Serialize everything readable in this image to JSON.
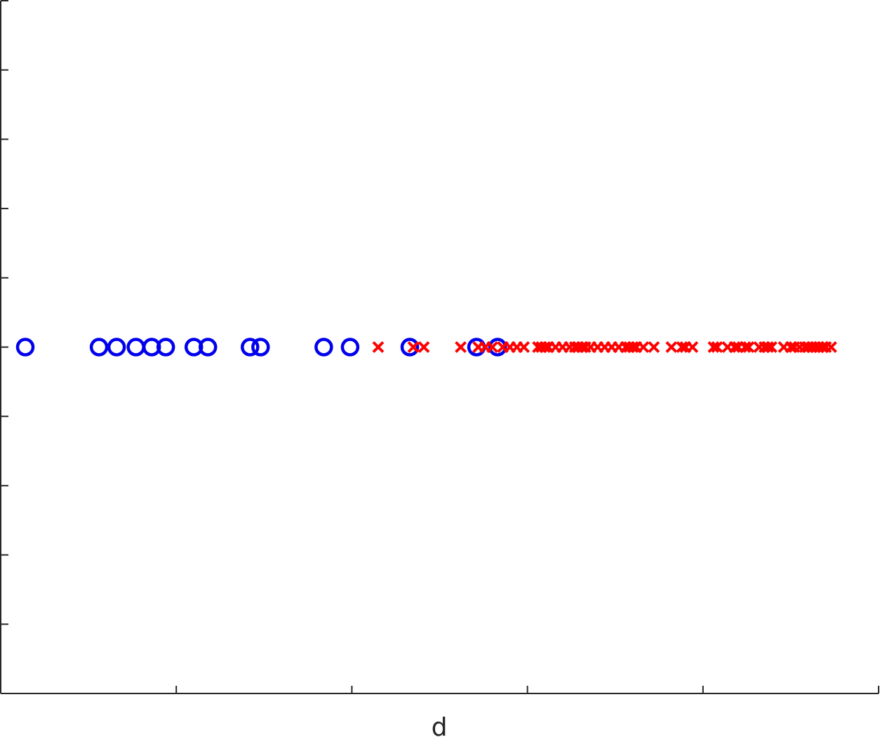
{
  "chart_data": {
    "type": "scatter",
    "title": "",
    "xlabel": "d",
    "ylabel": "",
    "xlim": [
      0,
      5
    ],
    "ylim": [
      -5,
      5
    ],
    "x_ticks": [
      0,
      1,
      2,
      3,
      4,
      5
    ],
    "y_ticks": [
      -5,
      -4,
      -3,
      -2,
      -1,
      0,
      1,
      2,
      3,
      4,
      5
    ],
    "tick_labels_visible": false,
    "grid": false,
    "legend": "none",
    "series": [
      {
        "marker": "circle",
        "color": "#0000ee",
        "y": 0,
        "x": [
          0.14,
          0.56,
          0.66,
          0.77,
          0.86,
          0.94,
          1.1,
          1.18,
          1.42,
          1.48,
          1.84,
          1.99,
          2.33,
          2.71,
          2.83
        ]
      },
      {
        "marker": "x",
        "color": "#ff0000",
        "y": 0,
        "x": [
          2.15,
          2.35,
          2.41,
          2.62,
          2.72,
          2.76,
          2.8,
          2.86,
          2.9,
          2.94,
          2.98,
          3.06,
          3.08,
          3.1,
          3.12,
          3.16,
          3.2,
          3.24,
          3.27,
          3.29,
          3.31,
          3.33,
          3.36,
          3.4,
          3.44,
          3.48,
          3.52,
          3.56,
          3.58,
          3.6,
          3.62,
          3.66,
          3.72,
          3.82,
          3.88,
          3.9,
          3.94,
          4.06,
          4.08,
          4.14,
          4.18,
          4.2,
          4.24,
          4.26,
          4.32,
          4.35,
          4.37,
          4.39,
          4.46,
          4.5,
          4.52,
          4.55,
          4.58,
          4.6,
          4.62,
          4.64,
          4.66,
          4.68,
          4.7,
          4.73
        ]
      }
    ]
  }
}
